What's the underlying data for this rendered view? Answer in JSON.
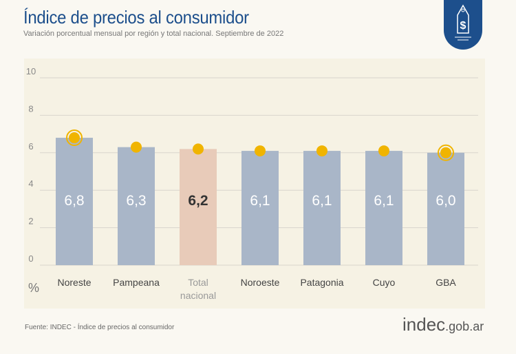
{
  "header": {
    "title": "Índice de precios al consumidor",
    "subtitle": "Variación porcentual mensual por región y total nacional. Septiembre de 2022"
  },
  "footer": {
    "source": "Fuente: INDEC - Índice de precios al consumidor",
    "logo_main": "indec",
    "logo_suffix": ".gob.ar"
  },
  "badge_icon": "price-tag-dollar-icon",
  "colors": {
    "bar": "#a9b6c8",
    "highlight_bar": "#e8cbb9",
    "dot": "#f0b400",
    "title": "#1d4f8c"
  },
  "chart_data": {
    "type": "bar",
    "categories": [
      "Noreste",
      "Pampeana",
      "Total nacional",
      "Noroeste",
      "Patagonia",
      "Cuyo",
      "GBA"
    ],
    "values": [
      6.8,
      6.3,
      6.2,
      6.1,
      6.1,
      6.1,
      6.0
    ],
    "labels": [
      "6,8",
      "6,3",
      "6,2",
      "6,1",
      "6,1",
      "6,1",
      "6,0"
    ],
    "highlight": "Total nacional",
    "ringed_markers": [
      "Noreste",
      "GBA"
    ],
    "ylabel": "%",
    "ylim": [
      0,
      10
    ],
    "yticks": [
      0,
      2,
      4,
      6,
      8,
      10
    ],
    "grid": true
  }
}
